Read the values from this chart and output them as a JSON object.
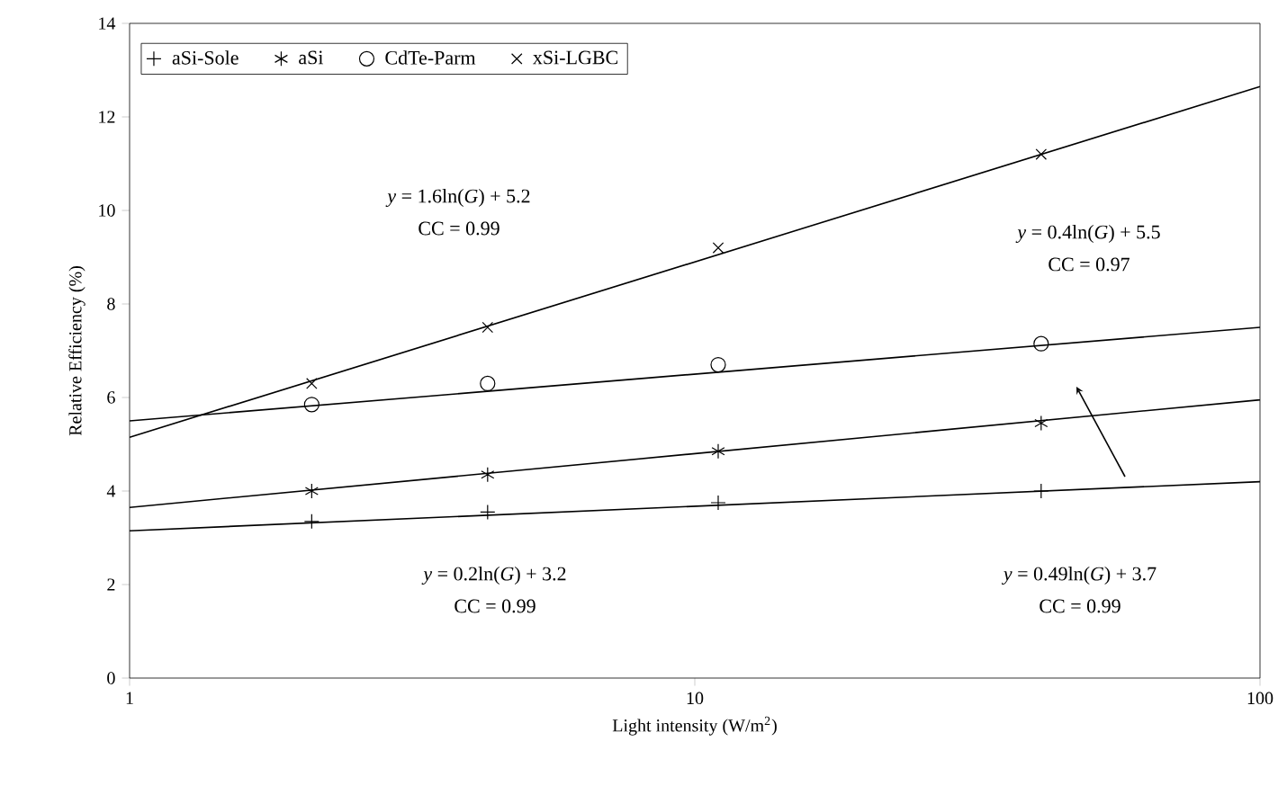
{
  "chart_data": {
    "type": "scatter",
    "xlabel": "Light intensity (W/m$^{2}$)",
    "ylabel": "Relative Efficiency (%)",
    "log": "x",
    "xlim": [
      1,
      100
    ],
    "xticks": [
      1,
      10,
      100
    ],
    "ylim": [
      0,
      14
    ],
    "yticks": [
      0,
      2,
      4,
      6,
      8,
      10,
      12,
      14
    ],
    "grid": false,
    "legend": "top left",
    "series": [
      {
        "name": "aSi-Sole",
        "marker": "plus",
        "color": "#000000",
        "x": [
          2.1,
          4.3,
          11,
          41
        ],
        "values": [
          3.35,
          3.55,
          3.75,
          4.0
        ]
      },
      {
        "name": "aSi",
        "color": "#000000",
        "x": [
          2.1,
          4.3,
          11,
          41
        ],
        "values": [
          4.0,
          4.35,
          4.85,
          5.45
        ]
      },
      {
        "name": "CdTe-Parm",
        "marker": "circle",
        "color": "#000000",
        "x": [
          2.1,
          4.3,
          11,
          41
        ],
        "values": [
          5.85,
          6.3,
          6.7,
          7.15
        ]
      },
      {
        "name": "xSi-LGBC",
        "marker": "cross",
        "color": "#000000",
        "x": [
          2.1,
          4.3,
          11,
          41
        ],
        "values": [
          6.3,
          7.5,
          9.2,
          11.2
        ]
      },
      {
        "type": "line",
        "marker": "none",
        "line_style": "solid",
        "color": "#000000",
        "x": [
          1,
          100
        ],
        "values": [
          3.15,
          4.2
        ]
      },
      {
        "type": "line",
        "marker": "none",
        "line_style": "solid",
        "color": "#000000",
        "x": [
          1,
          100
        ],
        "values": [
          3.65,
          5.95
        ]
      },
      {
        "type": "line",
        "marker": "none",
        "line_style": "solid",
        "color": "#000000",
        "x": [
          1,
          100
        ],
        "values": [
          5.5,
          7.5
        ]
      },
      {
        "type": "line",
        "marker": "none",
        "line_style": "solid",
        "color": "#000000",
        "x": [
          1,
          100
        ],
        "values": [
          5.15,
          12.65
        ]
      }
    ],
    "annotations": [
      "*y* = 1.6ln(*G*) + 5.2",
      "CC = 0.99",
      "*y* = 0.4ln(*G*) + 5.5",
      "CC = 0.97",
      "*y* = 0.2ln(*G*) + 3.2",
      "CC = 0.99",
      "*y* = 0.49ln(*G*) + 3.7",
      "CC = 0.99"
    ]
  }
}
